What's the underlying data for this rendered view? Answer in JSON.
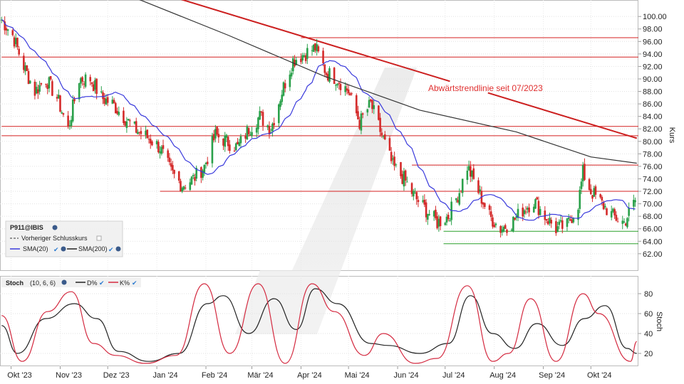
{
  "chart_data": [
    {
      "type": "candlestick",
      "symbol": "P911@IBIS",
      "ylabel": "Kurs",
      "ylim": [
        60.5,
        101.5
      ],
      "yticks": [
        "100.00",
        "98.00",
        "96.00",
        "94.00",
        "92.00",
        "90.00",
        "88.00",
        "86.00",
        "84.00",
        "82.00",
        "80.00",
        "78.00",
        "76.00",
        "74.00",
        "72.00",
        "70.00",
        "68.00",
        "66.00",
        "64.00",
        "62.00"
      ],
      "xticks": [
        "Okt '23",
        "Nov '23",
        "Dez '23",
        "Jan '24",
        "Feb '24",
        "Mär '24",
        "Apr '24",
        "Mai '24",
        "Jun '24",
        "Jul '24",
        "Aug '24",
        "Sep '24",
        "Okt '24"
      ],
      "legend": {
        "symbol": "P911@IBIS",
        "items": [
          "Vorheriger Schlusskurs",
          "SMA(20)",
          "SMA(200)"
        ]
      },
      "annotation": "Abwärtstrendlinie seit 07/2023",
      "price_path": [
        [
          "2023-09-25",
          99.5
        ],
        [
          "2023-10-02",
          97
        ],
        [
          "2023-10-09",
          92
        ],
        [
          "2023-10-16",
          88
        ],
        [
          "2023-10-23",
          90
        ],
        [
          "2023-10-30",
          87
        ],
        [
          "2023-11-06",
          82
        ],
        [
          "2023-11-13",
          90
        ],
        [
          "2023-11-20",
          90
        ],
        [
          "2023-11-27",
          87
        ],
        [
          "2023-12-04",
          86
        ],
        [
          "2023-12-11",
          84
        ],
        [
          "2023-12-18",
          82
        ],
        [
          "2023-12-27",
          80.5
        ],
        [
          "2024-01-03",
          79
        ],
        [
          "2024-01-10",
          75
        ],
        [
          "2024-01-17",
          73
        ],
        [
          "2024-01-24",
          74
        ],
        [
          "2024-01-31",
          76
        ],
        [
          "2024-02-07",
          81
        ],
        [
          "2024-02-14",
          80
        ],
        [
          "2024-02-21",
          79
        ],
        [
          "2024-02-28",
          82
        ],
        [
          "2024-03-06",
          84
        ],
        [
          "2024-03-13",
          82
        ],
        [
          "2024-03-20",
          88
        ],
        [
          "2024-03-27",
          93
        ],
        [
          "2024-04-03",
          94
        ],
        [
          "2024-04-10",
          95
        ],
        [
          "2024-04-17",
          91
        ],
        [
          "2024-04-24",
          90
        ],
        [
          "2024-05-01",
          88
        ],
        [
          "2024-05-08",
          83
        ],
        [
          "2024-05-15",
          86
        ],
        [
          "2024-05-22",
          81
        ],
        [
          "2024-05-29",
          76
        ],
        [
          "2024-06-05",
          74
        ],
        [
          "2024-06-12",
          71
        ],
        [
          "2024-06-19",
          69
        ],
        [
          "2024-06-26",
          67
        ],
        [
          "2024-07-03",
          68
        ],
        [
          "2024-07-10",
          72
        ],
        [
          "2024-07-15",
          76
        ],
        [
          "2024-07-22",
          72
        ],
        [
          "2024-07-29",
          68
        ],
        [
          "2024-08-05",
          66
        ],
        [
          "2024-08-12",
          67
        ],
        [
          "2024-08-19",
          69
        ],
        [
          "2024-08-26",
          70.5
        ],
        [
          "2024-09-02",
          68
        ],
        [
          "2024-09-09",
          66
        ],
        [
          "2024-09-16",
          66.5
        ],
        [
          "2024-09-23",
          70
        ],
        [
          "2024-09-26",
          75
        ],
        [
          "2024-10-01",
          72
        ],
        [
          "2024-10-08",
          70
        ],
        [
          "2024-10-15",
          68
        ],
        [
          "2024-10-22",
          67
        ],
        [
          "2024-10-29",
          70.5
        ]
      ],
      "sma200_path": [
        [
          "2023-12-18",
          103
        ],
        [
          "2024-02-15",
          97
        ],
        [
          "2024-04-15",
          90.5
        ],
        [
          "2024-06-15",
          85
        ],
        [
          "2024-08-15",
          81.5
        ],
        [
          "2024-10-01",
          77.5
        ],
        [
          "2024-10-30",
          76.5
        ]
      ],
      "horizontal_lines": [
        {
          "y": 96.6,
          "from": "2024-04-01",
          "color": "#d42020"
        },
        {
          "y": 93.5,
          "from": "2023-09-25",
          "color": "#d42020"
        },
        {
          "y": 82.4,
          "from": "2023-09-25",
          "color": "#d42020"
        },
        {
          "y": 80.9,
          "from": "2023-09-25",
          "color": "#d42020"
        },
        {
          "y": 76.2,
          "from": "2024-06-10",
          "color": "#d42020"
        },
        {
          "y": 72.0,
          "from": "2024-01-03",
          "color": "#d42020"
        },
        {
          "y": 65.6,
          "from": "2024-06-30",
          "color": "#2ca02c"
        },
        {
          "y": 63.6,
          "from": "2024-06-30",
          "color": "#2ca02c"
        }
      ],
      "trendline": {
        "from": [
          "2023-12-31",
          104
        ],
        "to": [
          "2024-10-30",
          80.5
        ],
        "gap": [
          "2024-07-04",
          "2024-07-28"
        ],
        "color": "#cc1f1f"
      }
    },
    {
      "type": "line",
      "title": "Stoch",
      "params": "(10, 6, 6)",
      "series": [
        {
          "name": "D%",
          "color": "#222222",
          "values": [
            [
              "2023-09-25",
              48
            ],
            [
              "2023-10-05",
              20
            ],
            [
              "2023-10-23",
              55
            ],
            [
              "2023-11-10",
              70
            ],
            [
              "2023-11-24",
              55
            ],
            [
              "2023-12-08",
              22
            ],
            [
              "2023-12-27",
              12
            ],
            [
              "2024-01-15",
              20
            ],
            [
              "2024-02-02",
              70
            ],
            [
              "2024-02-12",
              78
            ],
            [
              "2024-02-28",
              40
            ],
            [
              "2024-03-15",
              75
            ],
            [
              "2024-03-29",
              44
            ],
            [
              "2024-04-10",
              85
            ],
            [
              "2024-04-24",
              70
            ],
            [
              "2024-05-15",
              30
            ],
            [
              "2024-05-26",
              28
            ],
            [
              "2024-06-15",
              20
            ],
            [
              "2024-07-03",
              30
            ],
            [
              "2024-07-17",
              78
            ],
            [
              "2024-07-31",
              40
            ],
            [
              "2024-08-14",
              25
            ],
            [
              "2024-08-28",
              50
            ],
            [
              "2024-09-13",
              28
            ],
            [
              "2024-09-27",
              55
            ],
            [
              "2024-10-10",
              68
            ],
            [
              "2024-10-24",
              25
            ],
            [
              "2024-10-30",
              20
            ]
          ]
        },
        {
          "name": "K%",
          "color": "#d42a40",
          "values": [
            [
              "2023-09-25",
              58
            ],
            [
              "2023-10-08",
              12
            ],
            [
              "2023-10-24",
              62
            ],
            [
              "2023-11-08",
              82
            ],
            [
              "2023-11-22",
              30
            ],
            [
              "2023-12-06",
              18
            ],
            [
              "2023-12-25",
              10
            ],
            [
              "2024-01-13",
              18
            ],
            [
              "2024-01-31",
              90
            ],
            [
              "2024-02-16",
              20
            ],
            [
              "2024-03-05",
              90
            ],
            [
              "2024-03-22",
              10
            ],
            [
              "2024-04-08",
              90
            ],
            [
              "2024-04-22",
              62
            ],
            [
              "2024-05-11",
              18
            ],
            [
              "2024-05-23",
              40
            ],
            [
              "2024-06-12",
              10
            ],
            [
              "2024-06-26",
              15
            ],
            [
              "2024-07-15",
              88
            ],
            [
              "2024-07-31",
              12
            ],
            [
              "2024-08-10",
              20
            ],
            [
              "2024-08-24",
              75
            ],
            [
              "2024-09-09",
              12
            ],
            [
              "2024-09-26",
              80
            ],
            [
              "2024-10-06",
              60
            ],
            [
              "2024-10-26",
              12
            ],
            [
              "2024-10-30",
              32
            ]
          ]
        }
      ],
      "ylim": [
        10,
        95
      ],
      "yticks": [
        "80",
        "60",
        "40",
        "20"
      ],
      "ylabel": "Stoch"
    }
  ]
}
